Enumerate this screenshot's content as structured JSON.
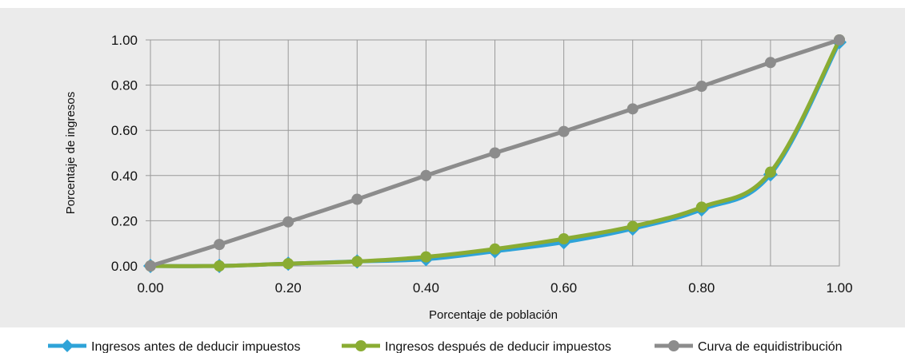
{
  "chart_data": {
    "type": "line",
    "xlabel": "Porcentaje de población",
    "ylabel": "Porcentaje de ingresos",
    "xlim": [
      0,
      1
    ],
    "ylim": [
      0,
      1
    ],
    "grid": true,
    "legend_position": "bottom",
    "x_ticks": [
      "0.00",
      "0.20",
      "0.40",
      "0.60",
      "0.80",
      "1.00"
    ],
    "y_ticks": [
      "0.00",
      "0.20",
      "0.40",
      "0.60",
      "0.80",
      "1.00"
    ],
    "x": [
      0.0,
      0.1,
      0.2,
      0.3,
      0.4,
      0.5,
      0.6,
      0.7,
      0.8,
      0.9,
      1.0
    ],
    "series": [
      {
        "name": "Ingresos antes de deducir impuestos",
        "color": "#2ea3d8",
        "marker": "diamond",
        "values": [
          0.0,
          0.0,
          0.01,
          0.02,
          0.03,
          0.065,
          0.105,
          0.165,
          0.25,
          0.405,
          0.99
        ]
      },
      {
        "name": "Ingresos después de deducir impuestos",
        "color": "#8aac33",
        "marker": "circle",
        "values": [
          0.0,
          0.0,
          0.01,
          0.02,
          0.04,
          0.075,
          0.12,
          0.175,
          0.26,
          0.415,
          1.0
        ]
      },
      {
        "name": "Curva de equidistribución",
        "color": "#8c8c8c",
        "marker": "circle",
        "values": [
          0.0,
          0.095,
          0.195,
          0.295,
          0.4,
          0.5,
          0.595,
          0.695,
          0.795,
          0.9,
          1.0
        ]
      }
    ]
  }
}
